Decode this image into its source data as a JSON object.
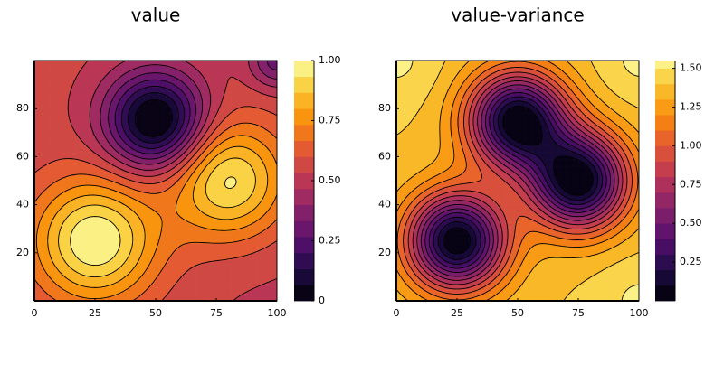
{
  "chart_data": [
    {
      "type": "contour",
      "title": "value",
      "xlabel": "",
      "ylabel": "",
      "xlim": [
        0,
        100
      ],
      "ylim": [
        0,
        100
      ],
      "x_ticks": [
        0,
        25,
        50,
        75,
        100
      ],
      "y_ticks": [
        20,
        40,
        60,
        80
      ],
      "grid": false,
      "colormap": "inferno",
      "colorbar": {
        "min": 0,
        "max": 1.0,
        "ticks": [
          "0",
          "0.25",
          "0.50",
          "0.75",
          "1.00"
        ],
        "tick_values": [
          0,
          0.25,
          0.5,
          0.75,
          1.0
        ]
      },
      "levels": [
        0,
        0.0667,
        0.1333,
        0.2,
        0.2667,
        0.3333,
        0.4,
        0.4667,
        0.5333,
        0.6,
        0.6667,
        0.7333,
        0.8,
        0.8667,
        0.9333,
        1.0
      ],
      "field": {
        "baseline": 0.55,
        "bumps": [
          {
            "center": [
              25,
              25
            ],
            "amplitude": 0.45,
            "spread": 18
          },
          {
            "center": [
              80,
              50
            ],
            "amplitude": 0.4,
            "spread": 17
          },
          {
            "center": [
              50,
              75
            ],
            "amplitude": -0.6,
            "spread": 14
          },
          {
            "center": [
              100,
              100
            ],
            "amplitude": -0.25,
            "spread": 8
          },
          {
            "center": [
              100,
              0
            ],
            "amplitude": -0.03,
            "spread": 25
          }
        ]
      },
      "features": [
        {
          "kind": "maximum",
          "x": 25,
          "y": 25,
          "value": 1.0
        },
        {
          "kind": "maximum",
          "x": 78,
          "y": 48,
          "value": 0.95
        },
        {
          "kind": "minimum",
          "x": 50,
          "y": 75,
          "value": 0.0
        }
      ]
    },
    {
      "type": "contour",
      "title": "value-variance",
      "xlabel": "",
      "ylabel": "",
      "xlim": [
        0,
        100
      ],
      "ylim": [
        0,
        100
      ],
      "x_ticks": [
        0,
        25,
        50,
        75,
        100
      ],
      "y_ticks": [
        20,
        40,
        60,
        80
      ],
      "grid": false,
      "colormap": "inferno",
      "colorbar": {
        "min": 0,
        "max": 1.55,
        "ticks": [
          "0.25",
          "0.50",
          "0.75",
          "1.00",
          "1.25",
          "1.50"
        ],
        "tick_values": [
          0.25,
          0.5,
          0.75,
          1.0,
          1.25,
          1.5
        ]
      },
      "levels": [
        0,
        0.1,
        0.2,
        0.3,
        0.4,
        0.5,
        0.6,
        0.7,
        0.8,
        0.9,
        1.0,
        1.1,
        1.2,
        1.3,
        1.4,
        1.5,
        1.55
      ],
      "field": {
        "baseline": 1.4,
        "bumps": [
          {
            "center": [
              25,
              25
            ],
            "amplitude": -1.4,
            "spread": 14
          },
          {
            "center": [
              50,
              75
            ],
            "amplitude": -1.4,
            "spread": 14
          },
          {
            "center": [
              75,
              50
            ],
            "amplitude": -1.4,
            "spread": 14
          },
          {
            "center": [
              0,
              100
            ],
            "amplitude": 0.12,
            "spread": 12
          },
          {
            "center": [
              100,
              0
            ],
            "amplitude": 0.12,
            "spread": 12
          },
          {
            "center": [
              100,
              100
            ],
            "amplitude": 0.12,
            "spread": 12
          }
        ]
      },
      "features": [
        {
          "kind": "minimum",
          "x": 25,
          "y": 25,
          "value": 0.0
        },
        {
          "kind": "minimum",
          "x": 50,
          "y": 75,
          "value": 0.0
        },
        {
          "kind": "minimum",
          "x": 75,
          "y": 50,
          "value": 0.0
        }
      ]
    }
  ]
}
